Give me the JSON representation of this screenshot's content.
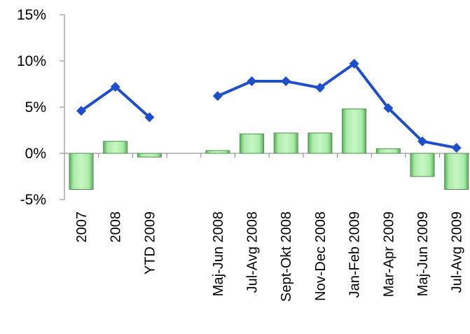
{
  "chart_data": {
    "type": "bar+line",
    "categories": [
      "2007",
      "2008",
      "YTD 2009",
      "",
      "Maj-Jun 2008",
      "Jul-Avg 2008",
      "Sept-Okt 2008",
      "Nov-Dec 2008",
      "Jan-Feb 2009",
      "Mar-Apr 2009",
      "Maj-Jun 2009",
      "Jul-Avg 2009"
    ],
    "series": [
      {
        "type": "bar",
        "values": [
          -3.9,
          1.3,
          -0.4,
          null,
          0.3,
          2.1,
          2.2,
          2.2,
          4.8,
          0.5,
          -2.5,
          -3.9
        ],
        "color": "#9be39b"
      },
      {
        "type": "line",
        "values": [
          4.6,
          7.2,
          3.9,
          null,
          6.2,
          7.8,
          7.8,
          7.1,
          9.7,
          4.9,
          1.3,
          0.6
        ],
        "color": "#1f4fc8"
      }
    ],
    "y_ticks": [
      "15%",
      "10%",
      "5%",
      "0%",
      "-5%"
    ],
    "ylim": [
      -5,
      15
    ],
    "grid": false,
    "legend": "none"
  }
}
